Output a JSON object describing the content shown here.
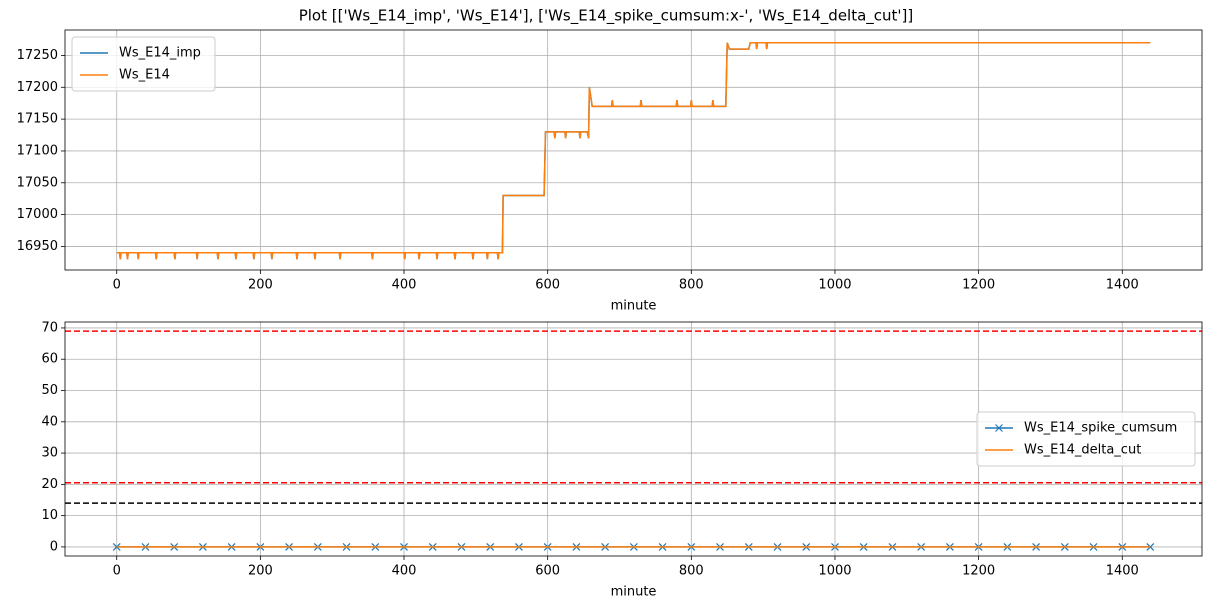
{
  "title": "Plot [['Ws_E14_imp', 'Ws_E14'], ['Ws_E14_spike_cumsum:x-', 'Ws_E14_delta_cut']]",
  "chart_data": [
    {
      "type": "line",
      "xlabel": "minute",
      "grid": true,
      "legend": "upper left",
      "xlim": [
        -72,
        1511
      ],
      "xticks": [
        0,
        200,
        400,
        600,
        800,
        1000,
        1200,
        1400
      ],
      "ylim": [
        16913,
        17290
      ],
      "yticks": [
        16950,
        17000,
        17050,
        17100,
        17150,
        17200,
        17250
      ],
      "x": [
        0,
        4,
        5,
        6,
        14,
        15,
        16,
        29,
        30,
        31,
        54,
        55,
        56,
        80,
        81,
        82,
        111,
        112,
        113,
        140,
        141,
        142,
        165,
        166,
        167,
        190,
        191,
        192,
        215,
        216,
        217,
        250,
        251,
        252,
        275,
        276,
        277,
        310,
        311,
        312,
        355,
        356,
        357,
        400,
        401,
        402,
        420,
        421,
        422,
        445,
        446,
        447,
        470,
        471,
        472,
        495,
        496,
        497,
        515,
        516,
        517,
        530,
        531,
        532,
        537,
        538,
        595,
        597,
        609,
        610,
        611,
        624,
        625,
        626,
        644,
        645,
        646,
        655,
        657,
        658,
        662,
        689,
        690,
        691,
        729,
        730,
        731,
        779,
        780,
        781,
        799,
        800,
        801,
        829,
        830,
        831,
        848,
        850,
        853,
        880,
        882,
        890,
        891,
        892,
        904,
        905,
        906,
        1439
      ],
      "series": [
        {
          "name": "Ws_E14_imp",
          "color": "#1f77b4",
          "values": [
            16940,
            16940,
            16930,
            16940,
            16940,
            16930,
            16940,
            16940,
            16930,
            16940,
            16940,
            16930,
            16940,
            16940,
            16930,
            16940,
            16940,
            16930,
            16940,
            16940,
            16930,
            16940,
            16940,
            16930,
            16940,
            16940,
            16930,
            16940,
            16940,
            16930,
            16940,
            16940,
            16930,
            16940,
            16940,
            16930,
            16940,
            16940,
            16930,
            16940,
            16940,
            16930,
            16940,
            16940,
            16930,
            16940,
            16940,
            16930,
            16940,
            16940,
            16930,
            16940,
            16940,
            16930,
            16940,
            16940,
            16930,
            16940,
            16940,
            16930,
            16940,
            16940,
            16930,
            16940,
            16940,
            17030,
            17030,
            17130,
            17130,
            17120,
            17130,
            17130,
            17120,
            17130,
            17130,
            17120,
            17130,
            17130,
            17120,
            17200,
            17170,
            17170,
            17180,
            17170,
            17170,
            17180,
            17170,
            17170,
            17180,
            17170,
            17170,
            17180,
            17170,
            17170,
            17180,
            17170,
            17170,
            17270,
            17260,
            17260,
            17270,
            17270,
            17260,
            17270,
            17270,
            17260,
            17270,
            17270
          ]
        },
        {
          "name": "Ws_E14",
          "color": "#ff7f0e",
          "values": [
            16940,
            16940,
            16930,
            16940,
            16940,
            16930,
            16940,
            16940,
            16930,
            16940,
            16940,
            16930,
            16940,
            16940,
            16930,
            16940,
            16940,
            16930,
            16940,
            16940,
            16930,
            16940,
            16940,
            16930,
            16940,
            16940,
            16930,
            16940,
            16940,
            16930,
            16940,
            16940,
            16930,
            16940,
            16940,
            16930,
            16940,
            16940,
            16930,
            16940,
            16940,
            16930,
            16940,
            16940,
            16930,
            16940,
            16940,
            16930,
            16940,
            16940,
            16930,
            16940,
            16940,
            16930,
            16940,
            16940,
            16930,
            16940,
            16940,
            16930,
            16940,
            16940,
            16930,
            16940,
            16940,
            17030,
            17030,
            17130,
            17130,
            17120,
            17130,
            17130,
            17120,
            17130,
            17130,
            17120,
            17130,
            17130,
            17120,
            17200,
            17170,
            17170,
            17180,
            17170,
            17170,
            17180,
            17170,
            17170,
            17180,
            17170,
            17170,
            17180,
            17170,
            17170,
            17180,
            17170,
            17170,
            17270,
            17260,
            17260,
            17270,
            17270,
            17260,
            17270,
            17270,
            17260,
            17270,
            17270
          ]
        }
      ]
    },
    {
      "type": "line",
      "xlabel": "minute",
      "grid": true,
      "legend": "center right",
      "xlim": [
        -72,
        1511
      ],
      "xticks": [
        0,
        200,
        400,
        600,
        800,
        1000,
        1200,
        1400
      ],
      "ylim": [
        -2.9,
        71.9
      ],
      "yticks": [
        0,
        10,
        20,
        30,
        40,
        50,
        60,
        70
      ],
      "x": [
        0,
        40,
        80,
        120,
        160,
        200,
        240,
        280,
        320,
        360,
        400,
        440,
        480,
        520,
        560,
        600,
        640,
        680,
        720,
        760,
        800,
        840,
        880,
        920,
        960,
        1000,
        1040,
        1080,
        1120,
        1160,
        1200,
        1240,
        1280,
        1320,
        1360,
        1400,
        1439
      ],
      "series": [
        {
          "name": "Ws_E14_spike_cumsum",
          "color": "#1f77b4",
          "marker": "x",
          "values": [
            0,
            0,
            0,
            0,
            0,
            0,
            0,
            0,
            0,
            0,
            0,
            0,
            0,
            0,
            0,
            0,
            0,
            0,
            0,
            0,
            0,
            0,
            0,
            0,
            0,
            0,
            0,
            0,
            0,
            0,
            0,
            0,
            0,
            0,
            0,
            0,
            0
          ]
        },
        {
          "name": "Ws_E14_delta_cut",
          "color": "#ff7f0e",
          "values": [
            0,
            0,
            0,
            0,
            0,
            0,
            0,
            0,
            0,
            0,
            0,
            0,
            0,
            0,
            0,
            0,
            0,
            0,
            0,
            0,
            0,
            0,
            0,
            0,
            0,
            0,
            0,
            0,
            0,
            0,
            0,
            0,
            0,
            0,
            0,
            0,
            0
          ]
        }
      ],
      "hlines": [
        {
          "value": 69,
          "color": "#ff0000"
        },
        {
          "value": 20.5,
          "color": "#ff0000"
        },
        {
          "value": 14,
          "color": "#000000"
        }
      ]
    }
  ]
}
